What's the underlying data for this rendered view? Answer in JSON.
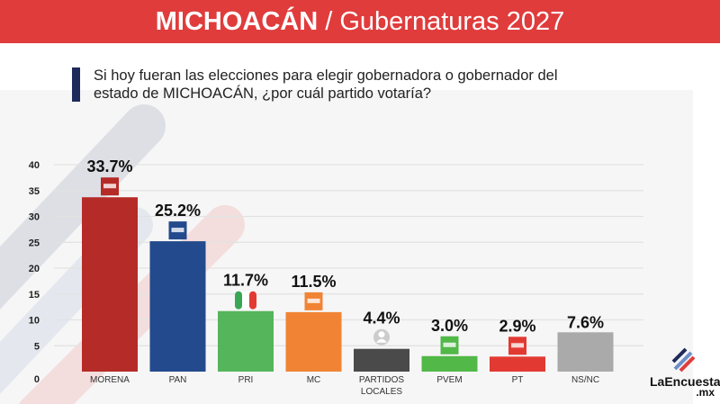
{
  "header": {
    "title_bold": "MICHOACÁN",
    "title_rest": " / Gubernaturas 2027"
  },
  "question": "Si hoy fueran las elecciones para elegir gobernadora o gobernador del estado de MICHOACÁN, ¿por cuál partido votaría?",
  "logo": {
    "name": "LaEncuesta",
    "suffix": ".mx"
  },
  "chart_data": {
    "type": "bar",
    "categories": [
      "MORENA",
      "PAN",
      "PRI",
      "MC",
      "PARTIDOS LOCALES",
      "PVEM",
      "PT",
      "NS/NC"
    ],
    "values": [
      33.7,
      25.2,
      11.7,
      11.5,
      4.4,
      3.0,
      2.9,
      7.6
    ],
    "data_labels": [
      "33.7%",
      "25.2%",
      "11.7%",
      "11.5%",
      "4.4%",
      "3.0%",
      "2.9%",
      "7.6%"
    ],
    "colors": [
      "#b52b27",
      "#234a8c",
      "#55b55a",
      "#f08434",
      "#4a4a4a",
      "#52b848",
      "#e23a32",
      "#aaaaaa"
    ],
    "icons": [
      "morena-logo-icon",
      "pan-logo-icon",
      "pri-logo-icon",
      "mc-logo-icon",
      "person-icon",
      "pvem-logo-icon",
      "pt-logo-icon",
      ""
    ],
    "yticks": [
      0,
      5,
      10,
      15,
      20,
      25,
      30,
      35,
      40
    ],
    "ylim": [
      0,
      40
    ],
    "grid": true,
    "title": "",
    "xlabel": "",
    "ylabel": ""
  }
}
